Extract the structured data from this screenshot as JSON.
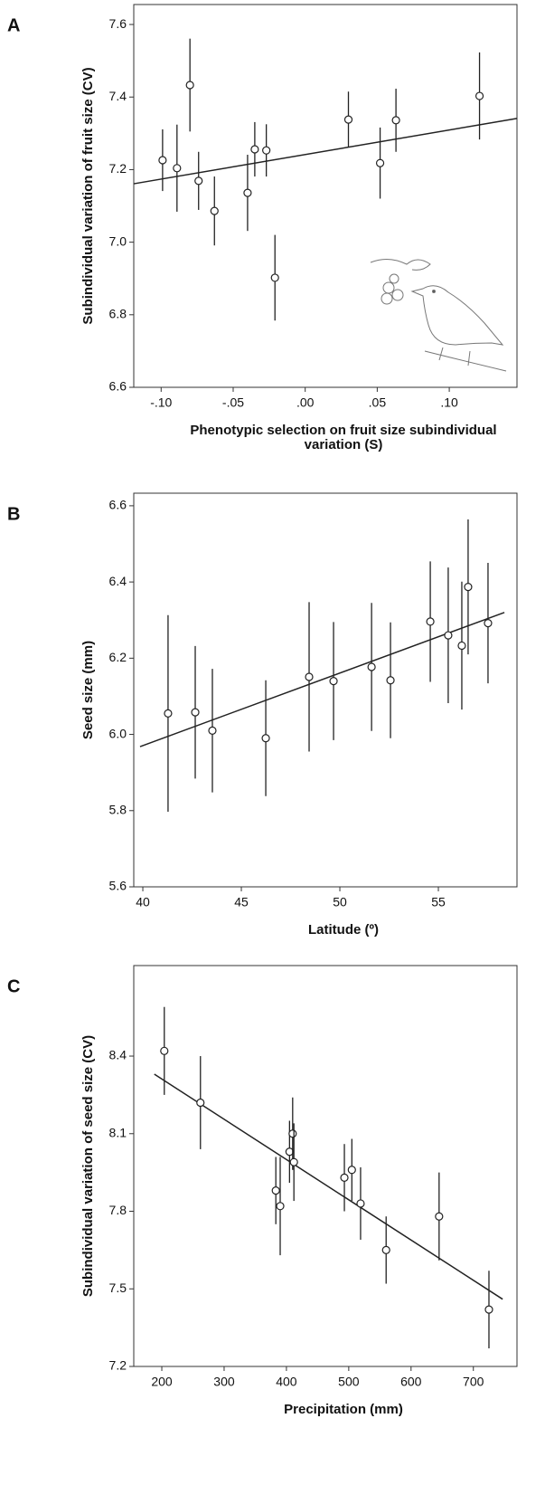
{
  "chart_data": [
    {
      "type": "scatter",
      "panel": "A",
      "xlabel": [
        "Phenotypic selection on fruit size subindividual",
        "variation (S)"
      ],
      "ylabel": "Subindividual variation of fruit size (CV)",
      "x": [
        -0.099,
        -0.089,
        -0.08,
        -0.074,
        -0.063,
        -0.04,
        -0.035,
        -0.027,
        -0.021,
        0.03,
        0.052,
        0.063,
        0.121
      ],
      "values": [
        7.226,
        7.204,
        7.433,
        7.169,
        7.086,
        7.136,
        7.256,
        7.253,
        6.902,
        7.338,
        7.218,
        7.336,
        7.403
      ],
      "errors": [
        0.085,
        0.12,
        0.128,
        0.08,
        0.095,
        0.105,
        0.075,
        0.072,
        0.118,
        0.077,
        0.098,
        0.087,
        0.12
      ],
      "trend": {
        "x": [
          -0.119,
          0.147
        ],
        "values": [
          7.161,
          7.341
        ]
      },
      "xlim": [
        -0.119,
        0.147
      ],
      "ylim": [
        6.6,
        7.655
      ],
      "xticks": [
        {
          "value": -0.1,
          "label": "-.10"
        },
        {
          "value": -0.05,
          "label": "-.05"
        },
        {
          "value": 0,
          "label": ".00"
        },
        {
          "value": 0.05,
          "label": ".05"
        },
        {
          "value": 0.1,
          "label": ".10"
        }
      ],
      "yticks": [
        6.6,
        6.8,
        {
          "value": 7,
          "label": "7.0"
        },
        7.2,
        7.4,
        7.6
      ],
      "color": "#222222"
    },
    {
      "type": "scatter",
      "panel": "B",
      "xlabel": [
        "Latitude (º)"
      ],
      "ylabel": "Seed size (mm)",
      "x": [
        41.28,
        42.66,
        43.53,
        46.24,
        48.44,
        49.68,
        51.61,
        52.57,
        54.59,
        55.5,
        56.19,
        56.51,
        57.52
      ],
      "values": [
        6.055,
        6.058,
        6.01,
        5.99,
        6.151,
        6.14,
        6.177,
        6.142,
        6.296,
        6.26,
        6.233,
        6.387,
        6.292
      ],
      "errors": [
        0.258,
        0.174,
        0.162,
        0.152,
        0.196,
        0.155,
        0.168,
        0.152,
        0.158,
        0.178,
        0.168,
        0.177,
        0.158
      ],
      "trend": {
        "x": [
          39.86,
          58.35
        ],
        "values": [
          5.968,
          6.32
        ]
      },
      "xlim": [
        39.54,
        58.99
      ],
      "ylim": [
        5.6,
        6.633
      ],
      "xticks": [
        40,
        45,
        50,
        55
      ],
      "yticks": [
        5.6,
        5.8,
        {
          "value": 6,
          "label": "6.0"
        },
        6.2,
        6.4,
        6.6
      ],
      "color": "#222222"
    },
    {
      "type": "scatter",
      "panel": "C",
      "xlabel": [
        "Precipitation (mm)"
      ],
      "ylabel": "Subindividual variation of seed size (CV)",
      "x": [
        204,
        262,
        383,
        390,
        405,
        410,
        412,
        493,
        505,
        519,
        560,
        645,
        725
      ],
      "values": [
        8.42,
        8.22,
        7.88,
        7.82,
        8.03,
        8.1,
        7.99,
        7.93,
        7.96,
        7.83,
        7.65,
        7.78,
        7.42
      ],
      "errors": [
        0.17,
        0.18,
        0.13,
        0.19,
        0.12,
        0.14,
        0.15,
        0.13,
        0.12,
        0.14,
        0.13,
        0.17,
        0.15
      ],
      "trend": {
        "x": [
          188,
          747
        ],
        "values": [
          8.33,
          7.46
        ]
      },
      "xlim": [
        155,
        770
      ],
      "ylim": [
        7.2,
        8.75
      ],
      "xticks": [
        200,
        300,
        400,
        500,
        600,
        700
      ],
      "yticks": [
        7.2,
        7.5,
        7.8,
        8.1,
        8.4
      ],
      "color": "#222222"
    }
  ]
}
